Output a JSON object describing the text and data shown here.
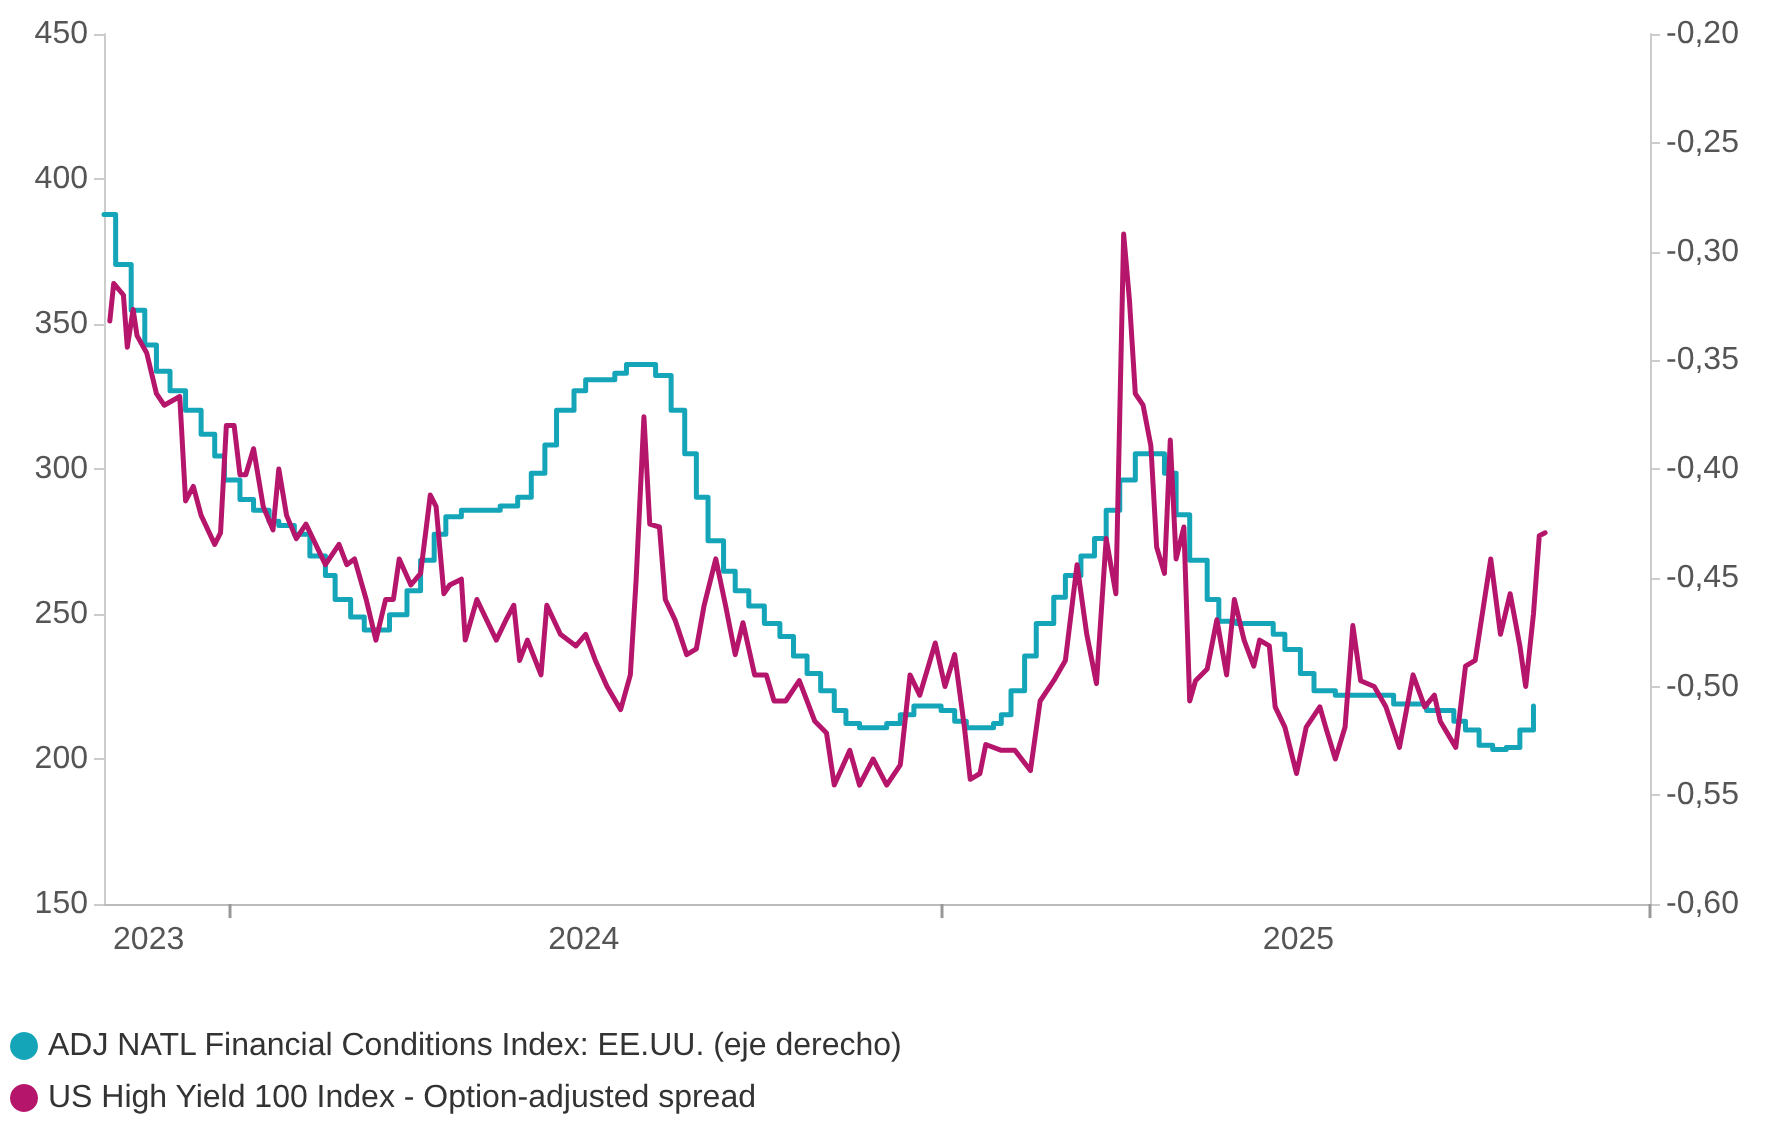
{
  "chart_data": {
    "type": "line",
    "legend": "bottom left",
    "grid": false,
    "marker": "none",
    "line_style": "solid",
    "xlim": [
      "2023-10-28",
      "2026-01-01"
    ],
    "xticks": [
      {
        "value": "2023-11-20",
        "label": "2023"
      },
      {
        "value": "2024-01-01",
        "label": null
      },
      {
        "value": "2024-07-01",
        "label": "2024"
      },
      {
        "value": "2025-01-01",
        "label": null
      },
      {
        "value": "2025-07-04",
        "label": "2025"
      },
      {
        "value": "2026-01-01",
        "label": null
      }
    ],
    "ylim": [
      150,
      450
    ],
    "yticks": [
      150,
      200,
      250,
      300,
      350,
      400,
      450
    ],
    "y2lim": [
      -0.6,
      -0.2
    ],
    "y2ticks": [
      {
        "value": -0.6,
        "label": "-0,60"
      },
      {
        "value": -0.55,
        "label": "-0,55"
      },
      {
        "value": -0.5,
        "label": "-0,50"
      },
      {
        "value": -0.45,
        "label": "-0,45"
      },
      {
        "value": -0.4,
        "label": "-0,40"
      },
      {
        "value": -0.35,
        "label": "-0,35"
      },
      {
        "value": -0.3,
        "label": "-0,30"
      },
      {
        "value": -0.25,
        "label": "-0,25"
      },
      {
        "value": -0.2,
        "label": "-0,20"
      }
    ],
    "series": [
      {
        "name": "ADJ NATL Financial Conditions Index: EE.UU. (eje derecho)",
        "type": "step",
        "axis": "y2",
        "color": "#14a5b8",
        "x": [
          "2023-10-28",
          "2023-11-03",
          "2023-11-11",
          "2023-11-18",
          "2023-11-24",
          "2023-12-01",
          "2023-12-09",
          "2023-12-17",
          "2023-12-24",
          "2023-12-29",
          "2024-01-06",
          "2024-01-13",
          "2024-01-21",
          "2024-01-26",
          "2024-02-03",
          "2024-02-11",
          "2024-02-19",
          "2024-02-24",
          "2024-03-03",
          "2024-03-10",
          "2024-03-23",
          "2024-04-01",
          "2024-04-08",
          "2024-04-15",
          "2024-04-21",
          "2024-04-29",
          "2024-05-19",
          "2024-05-28",
          "2024-06-04",
          "2024-06-11",
          "2024-06-17",
          "2024-06-26",
          "2024-07-02",
          "2024-07-17",
          "2024-07-23",
          "2024-08-07",
          "2024-08-15",
          "2024-08-22",
          "2024-08-28",
          "2024-09-03",
          "2024-09-11",
          "2024-09-17",
          "2024-09-24",
          "2024-10-02",
          "2024-10-10",
          "2024-10-17",
          "2024-10-24",
          "2024-10-31",
          "2024-11-07",
          "2024-11-13",
          "2024-11-20",
          "2024-12-04",
          "2024-12-11",
          "2024-12-18",
          "2025-01-01",
          "2025-01-08",
          "2025-01-14",
          "2025-01-28",
          "2025-02-01",
          "2025-02-06",
          "2025-02-13",
          "2025-02-19",
          "2025-02-28",
          "2025-03-06",
          "2025-03-14",
          "2025-03-21",
          "2025-03-27",
          "2025-04-03",
          "2025-04-11",
          "2025-04-26",
          "2025-05-02",
          "2025-05-09",
          "2025-05-18",
          "2025-05-24",
          "2025-06-02",
          "2025-06-21",
          "2025-06-27",
          "2025-07-05",
          "2025-07-12",
          "2025-07-23",
          "2025-08-12",
          "2025-08-22",
          "2025-09-08",
          "2025-09-22",
          "2025-09-28",
          "2025-10-05",
          "2025-10-12",
          "2025-10-19",
          "2025-10-26",
          "2025-11-02"
        ],
        "values": [
          -0.283,
          -0.306,
          -0.327,
          -0.343,
          -0.355,
          -0.364,
          -0.373,
          -0.384,
          -0.394,
          -0.405,
          -0.414,
          -0.419,
          -0.424,
          -0.426,
          -0.43,
          -0.44,
          -0.449,
          -0.46,
          -0.468,
          -0.474,
          -0.467,
          -0.456,
          -0.442,
          -0.43,
          -0.422,
          -0.419,
          -0.417,
          -0.413,
          -0.402,
          -0.389,
          -0.373,
          -0.364,
          -0.359,
          -0.356,
          -0.352,
          -0.357,
          -0.373,
          -0.393,
          -0.413,
          -0.433,
          -0.447,
          -0.456,
          -0.463,
          -0.471,
          -0.477,
          -0.486,
          -0.494,
          -0.502,
          -0.511,
          -0.517,
          -0.519,
          -0.517,
          -0.513,
          -0.509,
          -0.511,
          -0.516,
          -0.519,
          -0.517,
          -0.513,
          -0.502,
          -0.486,
          -0.471,
          -0.459,
          -0.449,
          -0.44,
          -0.432,
          -0.419,
          -0.405,
          -0.393,
          -0.402,
          -0.421,
          -0.442,
          -0.46,
          -0.47,
          -0.471,
          -0.476,
          -0.483,
          -0.494,
          -0.502,
          -0.504,
          -0.504,
          -0.508,
          -0.511,
          -0.516,
          -0.52,
          -0.527,
          -0.529,
          -0.528,
          -0.52,
          -0.509
        ]
      },
      {
        "name": "US High Yield 100 Index - Option-adjusted spread",
        "color": "#b5166b",
        "x": [
          "2023-10-31",
          "2023-11-02",
          "2023-11-07",
          "2023-11-09",
          "2023-11-12",
          "2023-11-14",
          "2023-11-19",
          "2023-11-24",
          "2023-11-28",
          "2023-12-06",
          "2023-12-09",
          "2023-12-13",
          "2023-12-17",
          "2023-12-24",
          "2023-12-27",
          "2023-12-30",
          "2024-01-03",
          "2024-01-06",
          "2024-01-09",
          "2024-01-13",
          "2024-01-18",
          "2024-01-23",
          "2024-01-26",
          "2024-01-30",
          "2024-02-04",
          "2024-02-09",
          "2024-02-14",
          "2024-02-19",
          "2024-02-26",
          "2024-03-01",
          "2024-03-05",
          "2024-03-11",
          "2024-03-16",
          "2024-03-21",
          "2024-03-25",
          "2024-03-28",
          "2024-04-03",
          "2024-04-08",
          "2024-04-13",
          "2024-04-16",
          "2024-04-20",
          "2024-04-23",
          "2024-04-29",
          "2024-05-01",
          "2024-05-07",
          "2024-05-12",
          "2024-05-17",
          "2024-05-22",
          "2024-05-26",
          "2024-05-29",
          "2024-06-02",
          "2024-06-09",
          "2024-06-12",
          "2024-06-19",
          "2024-06-27",
          "2024-07-02",
          "2024-07-07",
          "2024-07-13",
          "2024-07-20",
          "2024-07-25",
          "2024-07-28",
          "2024-08-01",
          "2024-08-04",
          "2024-08-09",
          "2024-08-12",
          "2024-08-17",
          "2024-08-23",
          "2024-08-28",
          "2024-09-01",
          "2024-09-07",
          "2024-09-12",
          "2024-09-17",
          "2024-09-21",
          "2024-09-27",
          "2024-10-03",
          "2024-10-07",
          "2024-10-13",
          "2024-10-20",
          "2024-10-28",
          "2024-11-03",
          "2024-11-07",
          "2024-11-15",
          "2024-11-20",
          "2024-11-27",
          "2024-12-04",
          "2024-12-11",
          "2024-12-16",
          "2024-12-21",
          "2024-12-29",
          "2025-01-03",
          "2025-01-08",
          "2025-01-13",
          "2025-01-16",
          "2025-01-21",
          "2025-01-24",
          "2025-02-01",
          "2025-02-08",
          "2025-02-16",
          "2025-02-21",
          "2025-02-28",
          "2025-03-06",
          "2025-03-12",
          "2025-03-17",
          "2025-03-22",
          "2025-03-27",
          "2025-04-01",
          "2025-04-05",
          "2025-04-08",
          "2025-04-11",
          "2025-04-15",
          "2025-04-19",
          "2025-04-22",
          "2025-04-26",
          "2025-04-29",
          "2025-05-02",
          "2025-05-06",
          "2025-05-09",
          "2025-05-12",
          "2025-05-18",
          "2025-05-23",
          "2025-05-28",
          "2025-06-01",
          "2025-06-06",
          "2025-06-11",
          "2025-06-14",
          "2025-06-19",
          "2025-06-22",
          "2025-06-27",
          "2025-07-03",
          "2025-07-08",
          "2025-07-15",
          "2025-07-18",
          "2025-07-23",
          "2025-07-28",
          "2025-08-01",
          "2025-08-05",
          "2025-08-12",
          "2025-08-18",
          "2025-08-25",
          "2025-09-01",
          "2025-09-07",
          "2025-09-12",
          "2025-09-15",
          "2025-09-23",
          "2025-09-28",
          "2025-10-03",
          "2025-10-11",
          "2025-10-16",
          "2025-10-21",
          "2025-10-26",
          "2025-10-29",
          "2025-11-02",
          "2025-11-05",
          "2025-11-08"
        ],
        "values": [
          351,
          364,
          360,
          342,
          355,
          346,
          340,
          326,
          322,
          325,
          289,
          294,
          284,
          274,
          278,
          315,
          315,
          298,
          298,
          307,
          287,
          279,
          300,
          284,
          276,
          281,
          274,
          267,
          274,
          267,
          269,
          255,
          241,
          255,
          255,
          269,
          260,
          264,
          291,
          287,
          257,
          260,
          262,
          241,
          255,
          248,
          241,
          248,
          253,
          234,
          241,
          229,
          253,
          243,
          239,
          243,
          234,
          225,
          217,
          229,
          262,
          318,
          281,
          280,
          255,
          248,
          236,
          238,
          253,
          269,
          253,
          236,
          247,
          229,
          229,
          220,
          220,
          227,
          213,
          209,
          191,
          203,
          191,
          200,
          191,
          198,
          229,
          222,
          240,
          225,
          236,
          211,
          193,
          195,
          205,
          203,
          203,
          196,
          220,
          227,
          234,
          267,
          243,
          226,
          276,
          257,
          381,
          358,
          326,
          322,
          308,
          273,
          264,
          310,
          269,
          280,
          220,
          227,
          231,
          248,
          229,
          255,
          241,
          232,
          241,
          239,
          218,
          211,
          195,
          211,
          218,
          211,
          200,
          211,
          246,
          227,
          225,
          218,
          204,
          229,
          218,
          222,
          213,
          204,
          232,
          234,
          269,
          243,
          257,
          239,
          225,
          250,
          277,
          278
        ]
      }
    ]
  }
}
